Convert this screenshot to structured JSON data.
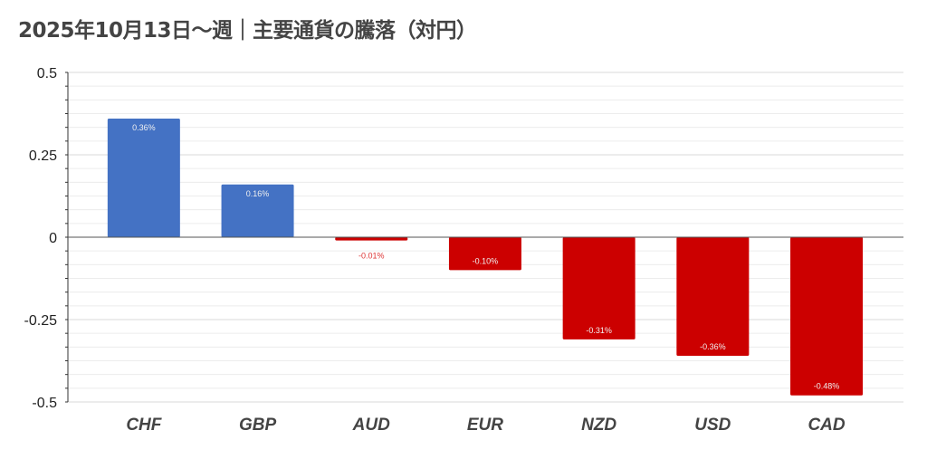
{
  "chart_data": {
    "type": "bar",
    "title": "2025年10月13日～週｜主要通貨の騰落（対円）",
    "categories": [
      "CHF",
      "GBP",
      "AUD",
      "EUR",
      "NZD",
      "USD",
      "CAD"
    ],
    "values": [
      0.36,
      0.16,
      -0.01,
      -0.1,
      -0.31,
      -0.36,
      -0.48
    ],
    "data_labels": [
      "0.36%",
      "0.16%",
      "-0.01%",
      "-0.10%",
      "-0.31%",
      "-0.36%",
      "-0.48%"
    ],
    "ylim": [
      -0.5,
      0.5
    ],
    "yticks": [
      0.5,
      0.25,
      0,
      -0.25,
      -0.5
    ],
    "ytick_labels": [
      "0.5",
      "0.25",
      "0",
      "-0.25",
      "-0.5"
    ],
    "grid": true,
    "xlabel": "",
    "ylabel": "",
    "colors": {
      "positive": "#4472c4",
      "negative": "#cc0000"
    }
  }
}
